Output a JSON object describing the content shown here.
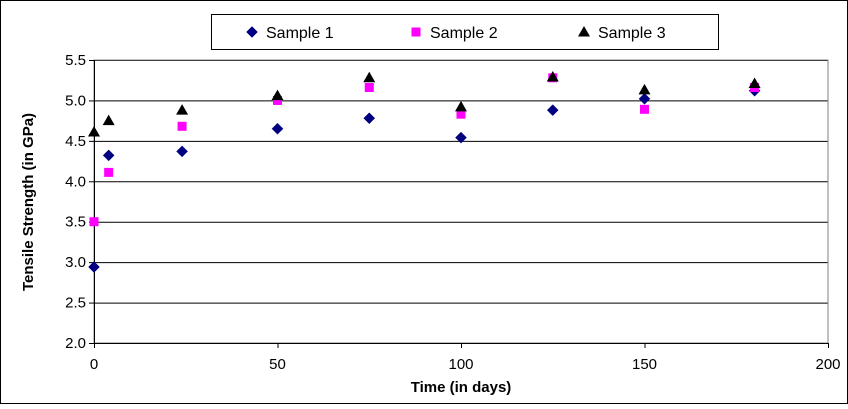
{
  "chart_data": {
    "type": "scatter",
    "title": "",
    "xlabel": "Time (in days)",
    "ylabel": "Tensile Strength (in GPa)",
    "xlim": [
      0,
      200
    ],
    "ylim": [
      2.0,
      5.5
    ],
    "xticks": [
      0,
      50,
      100,
      150,
      200
    ],
    "yticks": [
      2.0,
      2.5,
      3.0,
      3.5,
      4.0,
      4.5,
      5.0,
      5.5
    ],
    "x_tick_labels": [
      "0",
      "50",
      "100",
      "150",
      "200"
    ],
    "y_tick_labels": [
      "2.0",
      "2.5",
      "3.0",
      "3.5",
      "4.0",
      "4.5",
      "5.0",
      "5.5"
    ],
    "grid": "horizontal",
    "legend_position": "top",
    "series": [
      {
        "name": "Sample 1",
        "marker": "diamond",
        "color": "#000080",
        "points": [
          [
            0,
            2.94
          ],
          [
            4,
            4.32
          ],
          [
            24,
            4.37
          ],
          [
            50,
            4.65
          ],
          [
            75,
            4.78
          ],
          [
            100,
            4.54
          ],
          [
            125,
            4.88
          ],
          [
            150,
            5.02
          ],
          [
            180,
            5.12
          ]
        ]
      },
      {
        "name": "Sample 2",
        "marker": "square",
        "color": "#ff00ff",
        "points": [
          [
            0,
            3.5
          ],
          [
            4,
            4.11
          ],
          [
            24,
            4.68
          ],
          [
            50,
            5.0
          ],
          [
            75,
            5.16
          ],
          [
            100,
            4.83
          ],
          [
            125,
            5.28
          ],
          [
            150,
            4.89
          ],
          [
            180,
            5.16
          ]
        ]
      },
      {
        "name": "Sample 3",
        "marker": "triangle",
        "color": "#000000",
        "points": [
          [
            0,
            4.61
          ],
          [
            4,
            4.75
          ],
          [
            24,
            4.88
          ],
          [
            50,
            5.06
          ],
          [
            75,
            5.28
          ],
          [
            100,
            4.92
          ],
          [
            125,
            5.29
          ],
          [
            150,
            5.13
          ],
          [
            180,
            5.21
          ]
        ]
      }
    ]
  }
}
